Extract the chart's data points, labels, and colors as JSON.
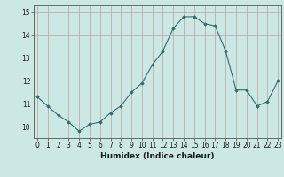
{
  "x": [
    0,
    1,
    2,
    3,
    4,
    5,
    6,
    7,
    8,
    9,
    10,
    11,
    12,
    13,
    14,
    15,
    16,
    17,
    18,
    19,
    20,
    21,
    22,
    23
  ],
  "y": [
    11.3,
    10.9,
    10.5,
    10.2,
    9.8,
    10.1,
    10.2,
    10.6,
    10.9,
    11.5,
    11.9,
    12.7,
    13.3,
    14.3,
    14.8,
    14.8,
    14.5,
    14.4,
    13.3,
    11.6,
    11.6,
    10.9,
    11.1,
    12.0
  ],
  "ylim": [
    9.5,
    15.3
  ],
  "yticks": [
    10,
    11,
    12,
    13,
    14,
    15
  ],
  "xticks": [
    0,
    1,
    2,
    3,
    4,
    5,
    6,
    7,
    8,
    9,
    10,
    11,
    12,
    13,
    14,
    15,
    16,
    17,
    18,
    19,
    20,
    21,
    22,
    23
  ],
  "xlabel": "Humidex (Indice chaleur)",
  "line_color": "#2d6e6e",
  "marker": "D",
  "marker_size": 1.8,
  "bg_color": "#cce8e4",
  "grid_major_color": "#b8a0a0",
  "grid_minor_color": "#ddc8c8",
  "figsize": [
    3.2,
    2.0
  ],
  "dpi": 100,
  "xlabel_fontsize": 6.5,
  "tick_fontsize": 5.5
}
